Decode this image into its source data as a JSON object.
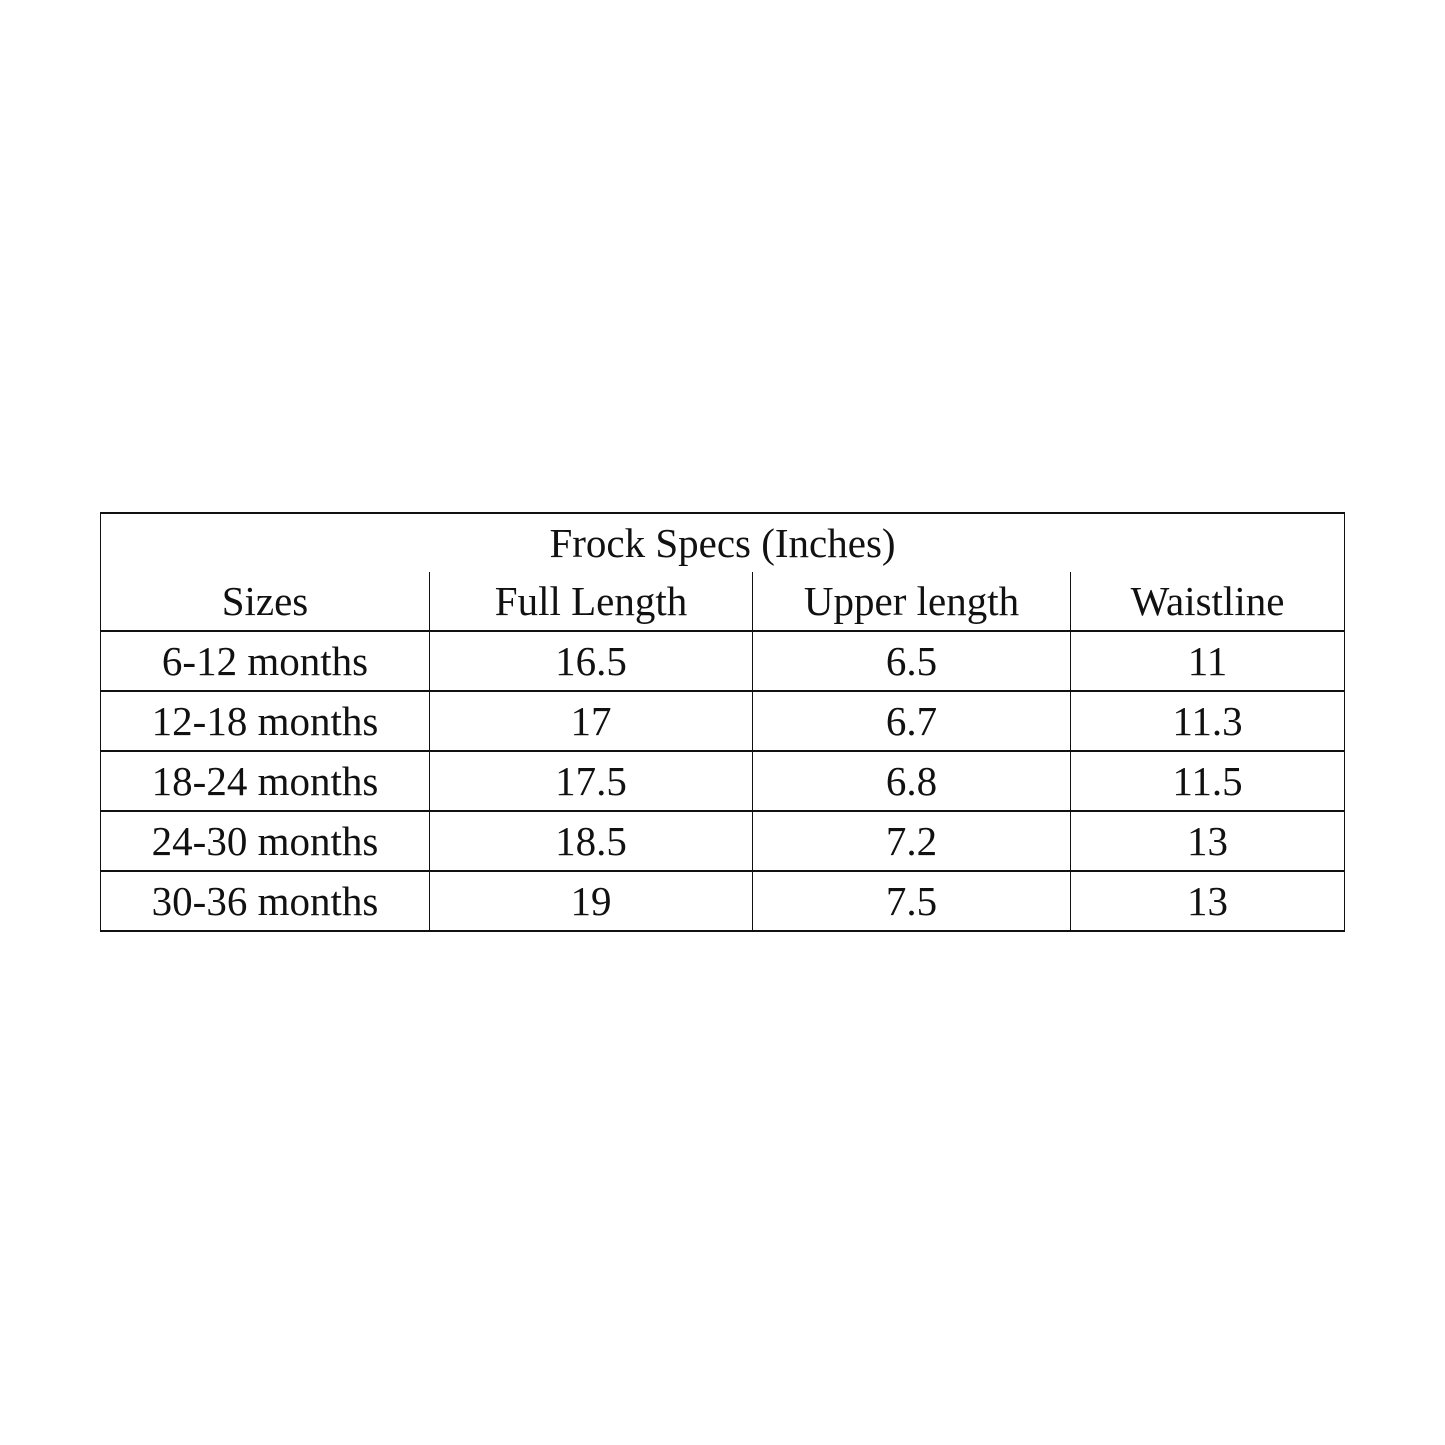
{
  "table": {
    "title": "Frock Specs (Inches)",
    "headers": [
      "Sizes",
      "Full Length",
      "Upper length",
      "Waistline"
    ],
    "rows": [
      [
        "6-12 months",
        "16.5",
        "6.5",
        "11"
      ],
      [
        "12-18 months",
        "17",
        "6.7",
        "11.3"
      ],
      [
        "18-24 months",
        "17.5",
        "6.8",
        "11.5"
      ],
      [
        "24-30 months",
        "18.5",
        "7.2",
        "13"
      ],
      [
        "30-36 months",
        "19",
        "7.5",
        "13"
      ]
    ]
  }
}
